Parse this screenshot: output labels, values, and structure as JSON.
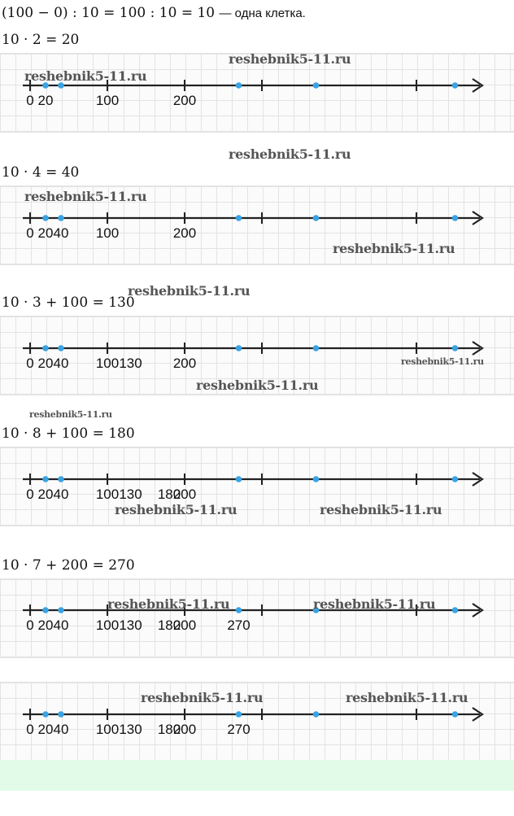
{
  "intro": {
    "equation": "(100 − 0) : 10 = 100 : 10 = 10",
    "note": "— одна клетка."
  },
  "watermark": "reshebnik5-11.ru",
  "axis": {
    "line_color": "#222222",
    "dot_color": "#3aa3e3",
    "grid_color": "#e3e3e3"
  },
  "lines": [
    {
      "equation": "10 · 2 = 20",
      "labels": [
        "0",
        "20",
        "100",
        "200"
      ]
    },
    {
      "equation": "10 · 4 = 40",
      "labels": [
        "0",
        "20",
        "40",
        "100",
        "200"
      ]
    },
    {
      "equation": "10 · 3 + 100 = 130",
      "labels": [
        "0",
        "20",
        "40",
        "100",
        "130",
        "200"
      ]
    },
    {
      "equation": "10 · 8 + 100 = 180",
      "labels": [
        "0",
        "20",
        "40",
        "100",
        "130",
        "180",
        "200"
      ]
    },
    {
      "equation": "10 · 7 + 200 = 270",
      "labels": [
        "0",
        "20",
        "40",
        "100",
        "130",
        "180",
        "200",
        "270"
      ]
    },
    {
      "equation": "",
      "labels": [
        "0",
        "20",
        "40",
        "100",
        "130",
        "180",
        "200",
        "270"
      ]
    }
  ]
}
